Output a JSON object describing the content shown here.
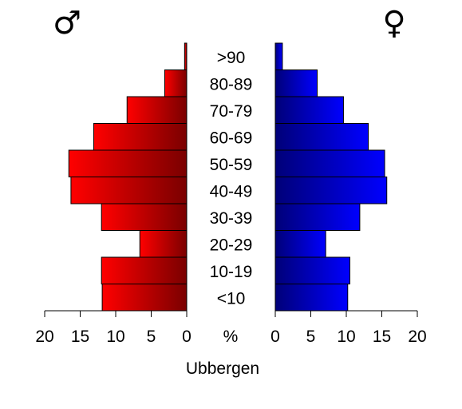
{
  "chart_data": {
    "type": "bar",
    "orientation": "horizontal-pyramid",
    "title": "Ubbergen",
    "categories": [
      "<10",
      "10-19",
      "20-29",
      "30-39",
      "40-49",
      "50-59",
      "60-69",
      "70-79",
      "80-89",
      ">90"
    ],
    "series": [
      {
        "name": "♂",
        "side": "left",
        "color_light": "#ff0000",
        "color_dark": "#7a0000",
        "values": [
          11.9,
          12.0,
          6.6,
          12.0,
          16.3,
          16.6,
          13.1,
          8.4,
          3.1,
          0.3
        ]
      },
      {
        "name": "♀",
        "side": "right",
        "color_light": "#0000ff",
        "color_dark": "#000078",
        "values": [
          10.2,
          10.5,
          7.1,
          11.9,
          15.7,
          15.4,
          13.1,
          9.6,
          5.9,
          1.0
        ]
      }
    ],
    "axis_ticks": [
      0,
      5,
      10,
      15,
      20
    ],
    "xlim": [
      0,
      20
    ],
    "center_unit_label": "%",
    "grid": false,
    "legend": "none"
  }
}
